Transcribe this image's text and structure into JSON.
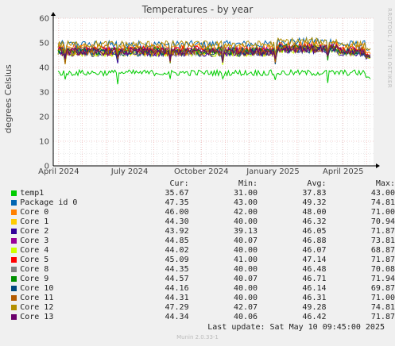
{
  "chart_data": {
    "type": "line",
    "title": "Temperatures - by year",
    "ylabel": "degrees Celsius",
    "ylim": [
      0,
      60
    ],
    "y_ticks": [
      "0",
      "10",
      "20",
      "30",
      "40",
      "50",
      "60"
    ],
    "x_range": [
      "2024-03-25",
      "2025-05-10"
    ],
    "x_ticks": [
      {
        "label": "April 2024",
        "date": "2024-04-01"
      },
      {
        "label": "July 2024",
        "date": "2024-07-01"
      },
      {
        "label": "October 2024",
        "date": "2024-10-01"
      },
      {
        "label": "January 2025",
        "date": "2025-01-01"
      },
      {
        "label": "April 2025",
        "date": "2025-04-01"
      }
    ],
    "grid": true,
    "legend_columns": [
      "Cur:",
      "Min:",
      "Avg:",
      "Max:"
    ],
    "series": [
      {
        "name": "temp1",
        "color": "#00cc00",
        "cur": "35.67",
        "min": "31.00",
        "avg": "37.83",
        "max": "43.00"
      },
      {
        "name": "Package id 0",
        "color": "#0066b3",
        "cur": "47.35",
        "min": "43.00",
        "avg": "49.32",
        "max": "74.81"
      },
      {
        "name": "Core 0",
        "color": "#ff8000",
        "cur": "46.00",
        "min": "42.00",
        "avg": "48.00",
        "max": "71.00"
      },
      {
        "name": "Core 1",
        "color": "#ffcc00",
        "cur": "44.30",
        "min": "40.00",
        "avg": "46.32",
        "max": "70.94"
      },
      {
        "name": "Core 2",
        "color": "#330099",
        "cur": "43.92",
        "min": "39.13",
        "avg": "46.05",
        "max": "71.87"
      },
      {
        "name": "Core 3",
        "color": "#990099",
        "cur": "44.85",
        "min": "40.07",
        "avg": "46.88",
        "max": "73.81"
      },
      {
        "name": "Core 4",
        "color": "#ccff00",
        "cur": "44.02",
        "min": "40.00",
        "avg": "46.07",
        "max": "68.87"
      },
      {
        "name": "Core 5",
        "color": "#ff0000",
        "cur": "45.09",
        "min": "41.00",
        "avg": "47.14",
        "max": "71.87"
      },
      {
        "name": "Core 8",
        "color": "#808080",
        "cur": "44.35",
        "min": "40.00",
        "avg": "46.48",
        "max": "70.08"
      },
      {
        "name": "Core 9",
        "color": "#008f00",
        "cur": "44.57",
        "min": "40.07",
        "avg": "46.71",
        "max": "71.94"
      },
      {
        "name": "Core 10",
        "color": "#00487d",
        "cur": "44.16",
        "min": "40.00",
        "avg": "46.14",
        "max": "69.87"
      },
      {
        "name": "Core 11",
        "color": "#b35a00",
        "cur": "44.31",
        "min": "40.00",
        "avg": "46.31",
        "max": "71.00"
      },
      {
        "name": "Core 12",
        "color": "#b38f00",
        "cur": "47.29",
        "min": "42.07",
        "avg": "49.28",
        "max": "74.81"
      },
      {
        "name": "Core 13",
        "color": "#6b006b",
        "cur": "44.34",
        "min": "40.06",
        "avg": "46.42",
        "max": "71.87"
      }
    ]
  },
  "side_label": "RRDTOOL / TOBI OETIKER",
  "last_update": "Last update:  Sat May 10 09:45:00 2025",
  "version": "Munin 2.0.33-1",
  "colors": {
    "background": "#f0f0f0",
    "plot_background": "#ffffff",
    "grid_major": "#e8a0a0",
    "grid_minor": "#d8d8d8",
    "axis": "#000000"
  }
}
